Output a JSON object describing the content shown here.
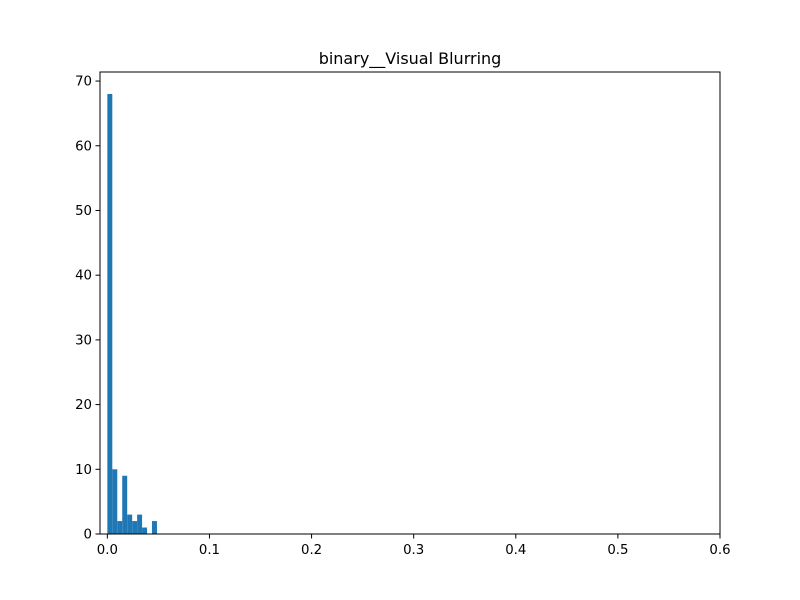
{
  "chart_data": {
    "type": "bar",
    "title": "binary__Visual Blurring",
    "xlabel": "",
    "ylabel": "",
    "xlim": [
      -0.0072,
      0.6
    ],
    "ylim": [
      0,
      71.4
    ],
    "xticks": [
      0.0,
      0.1,
      0.2,
      0.3,
      0.4,
      0.5,
      0.6
    ],
    "xtick_labels": [
      "0.0",
      "0.1",
      "0.2",
      "0.3",
      "0.4",
      "0.5",
      "0.6"
    ],
    "yticks": [
      0,
      10,
      20,
      30,
      40,
      50,
      60,
      70
    ],
    "ytick_labels": [
      "0",
      "10",
      "20",
      "30",
      "40",
      "50",
      "60",
      "70"
    ],
    "bin_width": 0.00486,
    "bins": [
      {
        "x0": 0.0,
        "x1": 0.00486,
        "count": 68
      },
      {
        "x0": 0.00486,
        "x1": 0.00972,
        "count": 10
      },
      {
        "x0": 0.00972,
        "x1": 0.01458,
        "count": 2
      },
      {
        "x0": 0.01458,
        "x1": 0.01944,
        "count": 9
      },
      {
        "x0": 0.01944,
        "x1": 0.0243,
        "count": 3
      },
      {
        "x0": 0.0243,
        "x1": 0.02916,
        "count": 2
      },
      {
        "x0": 0.02916,
        "x1": 0.03402,
        "count": 3
      },
      {
        "x0": 0.03402,
        "x1": 0.03888,
        "count": 1
      },
      {
        "x0": 0.03888,
        "x1": 0.04374,
        "count": 0
      },
      {
        "x0": 0.04374,
        "x1": 0.0486,
        "count": 2
      }
    ],
    "bar_color": "#1f77b4",
    "grid": false,
    "legend": false
  }
}
